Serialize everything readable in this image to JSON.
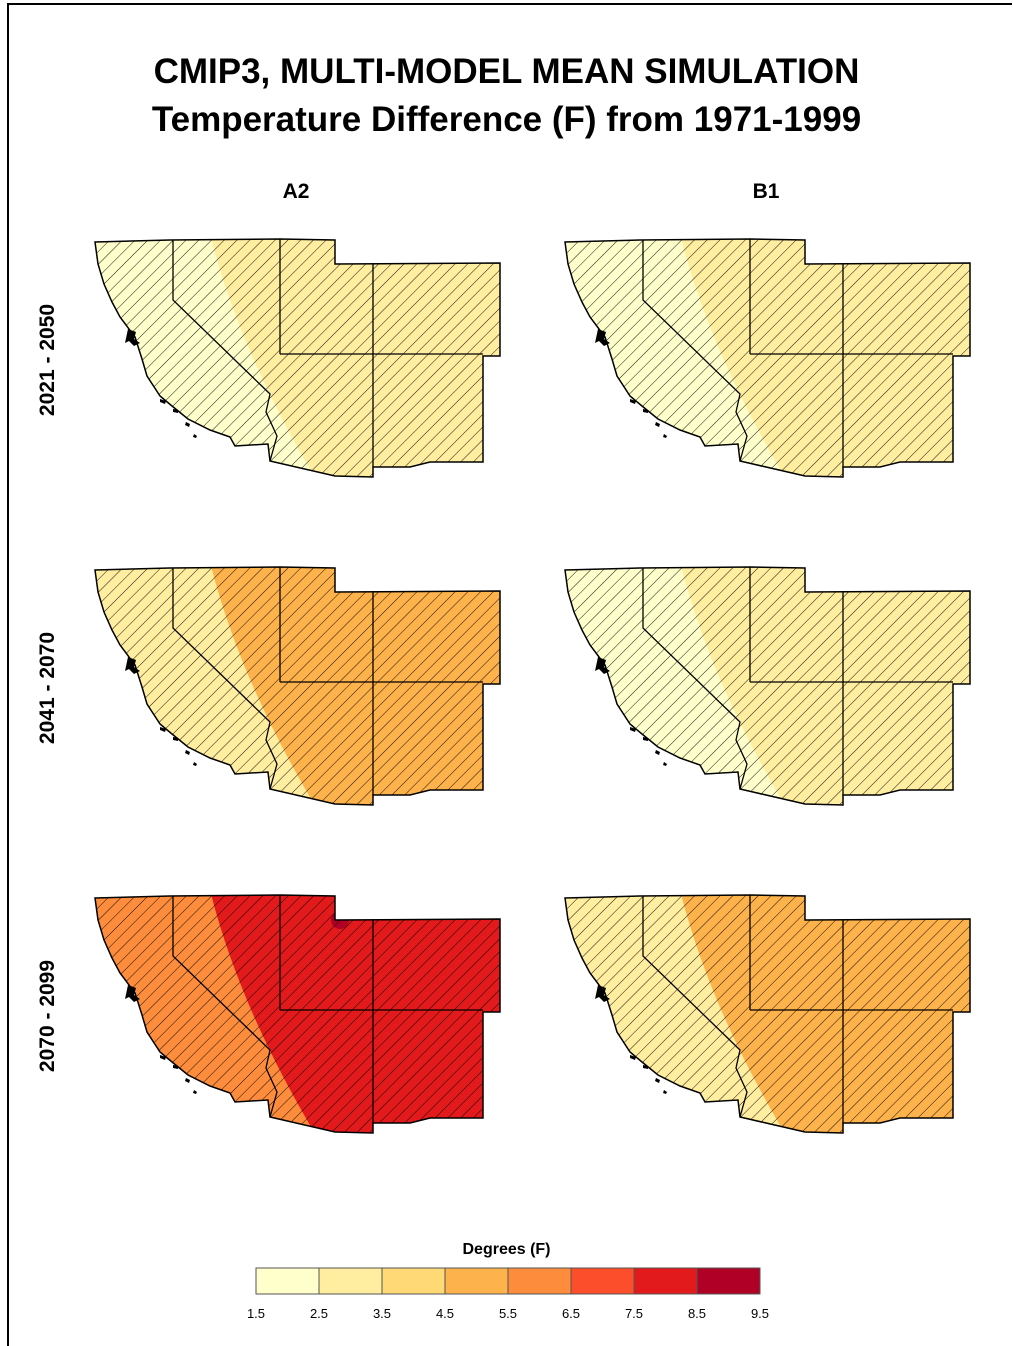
{
  "title": {
    "line1": "CMIP3, MULTI-MODEL MEAN SIMULATION",
    "line2": "Temperature Difference (F) from 1971-1999"
  },
  "columns": [
    "A2",
    "B1"
  ],
  "rows": [
    "2021 - 2050",
    "2041 - 2070",
    "2070 - 2099"
  ],
  "legend": {
    "title": "Degrees (F)",
    "ticks": [
      "1.5",
      "2.5",
      "3.5",
      "4.5",
      "5.5",
      "6.5",
      "7.5",
      "8.5",
      "9.5"
    ],
    "colors": [
      "#ffffcc",
      "#ffeda0",
      "#fed976",
      "#feb24c",
      "#fd8d3c",
      "#fc4e2a",
      "#e31a1c",
      "#b10026"
    ]
  },
  "maps": [
    {
      "scenario": "A2",
      "period": "2021 - 2050",
      "inner": "#ffffcc",
      "outer": "#ffeda0",
      "peak": null
    },
    {
      "scenario": "B1",
      "period": "2021 - 2050",
      "inner": "#ffffcc",
      "outer": "#ffeda0",
      "peak": null
    },
    {
      "scenario": "A2",
      "period": "2041 - 2070",
      "inner": "#ffeda0",
      "outer": "#feb24c",
      "peak": null
    },
    {
      "scenario": "B1",
      "period": "2041 - 2070",
      "inner": "#ffffcc",
      "outer": "#ffeda0",
      "peak": null
    },
    {
      "scenario": "A2",
      "period": "2070 - 2099",
      "inner": "#fd8d3c",
      "outer": "#e31a1c",
      "peak": "#b10026"
    },
    {
      "scenario": "B1",
      "period": "2070 - 2099",
      "inner": "#ffeda0",
      "outer": "#feb24c",
      "peak": null
    }
  ]
}
